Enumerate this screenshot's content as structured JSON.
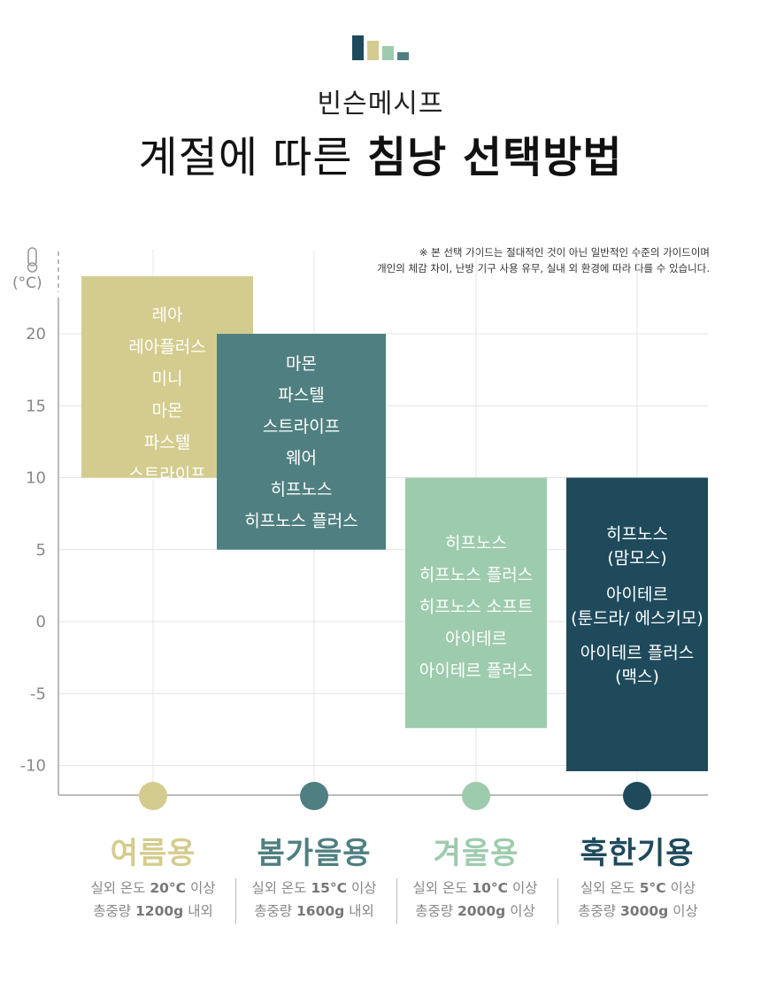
{
  "brand": "빈슨메시프",
  "title": {
    "light": "계절에 따른",
    "bold": "침낭 선택방법"
  },
  "note": {
    "line1": "※ 본 선택 가이드는 절대적인 것이 아닌 일반적인 수준의 가이드이며",
    "line2": "개인의 체감 차이, 난방 기구 사용 유무, 실내 외 환경에 따라 다를 수 있습니다."
  },
  "colors": {
    "summer": "#d4cc8e",
    "spring_fall": "#4f7f80",
    "winter": "#9dcbad",
    "extreme": "#1e4a5c",
    "axis": "#bbbbbb",
    "grid": "#e4e4e4",
    "tick": "#888888"
  },
  "icons": {
    "thermometer": "thermometer-icon",
    "logo": "bar-logo-icon"
  },
  "chart_data": {
    "type": "floating-bar",
    "ylabel": "(°C)",
    "yticks": [
      20,
      15,
      10,
      5,
      0,
      -5,
      -10
    ],
    "ylim": [
      -12,
      24
    ],
    "grid": true,
    "categories": [
      {
        "key": "summer",
        "name": "여름용",
        "temp_max": 24,
        "temp_min": 10,
        "products": [
          "레아",
          "레아플러스",
          "미니",
          "마몬",
          "파스텔",
          "스트라이프"
        ],
        "condition": {
          "label": "실외 온도",
          "temp": "20°C",
          "suffix": "이상"
        },
        "weight": {
          "label": "총중량",
          "value": "1200g",
          "suffix": "내외"
        }
      },
      {
        "key": "spring_fall",
        "name": "봄가을용",
        "temp_max": 20,
        "temp_min": 5,
        "products": [
          "마몬",
          "파스텔",
          "스트라이프",
          "웨어",
          "히프노스",
          "히프노스 플러스"
        ],
        "condition": {
          "label": "실외 온도",
          "temp": "15°C",
          "suffix": "이상"
        },
        "weight": {
          "label": "총중량",
          "value": "1600g",
          "suffix": "내외"
        }
      },
      {
        "key": "winter",
        "name": "겨울용",
        "temp_max": 10,
        "temp_min": -7.4,
        "products": [
          "히프노스",
          "히프노스 플러스",
          "히프노스 소프트",
          "아이테르",
          "아이테르 플러스"
        ],
        "condition": {
          "label": "실외 온도",
          "temp": "10°C",
          "suffix": "이상"
        },
        "weight": {
          "label": "총중량",
          "value": "2000g",
          "suffix": "이상"
        }
      },
      {
        "key": "extreme",
        "name": "혹한기용",
        "temp_max": 10,
        "temp_min": -10.4,
        "products": [
          "히프노스",
          "(맘모스)",
          "아이테르",
          "(툰드라/ 에스키모)",
          "아이테르 플러스",
          "(맥스)"
        ],
        "condition": {
          "label": "실외 온도",
          "temp": "5°C",
          "suffix": "이상"
        },
        "weight": {
          "label": "총중량",
          "value": "3000g",
          "suffix": "이상"
        }
      }
    ]
  }
}
